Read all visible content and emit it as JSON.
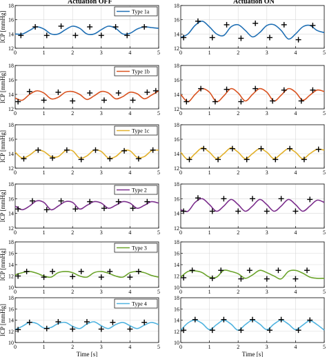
{
  "figure": {
    "col_titles": [
      "Actuation OFF",
      "Actuation ON"
    ],
    "ylabel": "ICP [mmHg]",
    "xlabel": "Time [s]",
    "x_ticks": [
      "0",
      "1",
      "2",
      "3",
      "4",
      "5"
    ]
  },
  "chart_data": [
    {
      "type": "line",
      "series": [
        {
          "name": "Type 1a",
          "color": "#1f6fb4"
        }
      ],
      "x": [
        0.0,
        0.25,
        0.5,
        0.75,
        1.0,
        1.25,
        1.5,
        1.75,
        2.0,
        2.25,
        2.5,
        2.75,
        3.0,
        3.25,
        3.5,
        3.75,
        4.0,
        4.25,
        4.5,
        4.75,
        5.0
      ],
      "y": [
        14.0,
        14.0,
        14.5,
        15.0,
        14.7,
        14.0,
        14.0,
        14.6,
        15.1,
        14.8,
        14.0,
        14.0,
        14.6,
        15.1,
        14.8,
        14.0,
        14.1,
        14.7,
        15.0,
        14.9,
        14.8
      ],
      "peaks": [
        [
          0.7,
          15.0
        ],
        [
          1.6,
          15.1
        ],
        [
          2.6,
          15.0
        ],
        [
          3.5,
          15.0
        ],
        [
          4.5,
          15.0
        ]
      ],
      "troughs": [
        [
          0.2,
          13.8
        ],
        [
          1.1,
          13.8
        ],
        [
          2.1,
          13.8
        ],
        [
          3.0,
          13.8
        ],
        [
          3.9,
          13.8
        ]
      ],
      "yticks": [
        "12",
        "14",
        "16",
        "18"
      ],
      "ylim": [
        12,
        18
      ],
      "legend": "top-right",
      "column": "Actuation OFF"
    },
    {
      "type": "line",
      "series": [
        {
          "name": "Type 1a",
          "color": "#1f6fb4"
        }
      ],
      "x": [
        0.0,
        0.25,
        0.5,
        0.75,
        1.0,
        1.25,
        1.5,
        1.75,
        2.0,
        2.25,
        2.5,
        2.75,
        3.0,
        3.25,
        3.5,
        3.75,
        4.0,
        4.25,
        4.5,
        4.75,
        5.0
      ],
      "y": [
        13.5,
        14.0,
        15.2,
        15.8,
        15.0,
        14.0,
        13.8,
        15.0,
        15.3,
        14.5,
        13.6,
        14.2,
        15.2,
        15.3,
        14.5,
        13.3,
        14.0,
        15.0,
        15.2,
        14.5,
        14.2
      ],
      "peaks": [
        [
          0.6,
          15.8
        ],
        [
          1.6,
          15.3
        ],
        [
          2.6,
          15.5
        ],
        [
          3.6,
          15.3
        ],
        [
          4.6,
          15.2
        ]
      ],
      "troughs": [
        [
          0.1,
          13.5
        ],
        [
          1.1,
          13.5
        ],
        [
          2.1,
          13.4
        ],
        [
          3.1,
          13.5
        ],
        [
          4.1,
          13.2
        ]
      ],
      "yticks": [
        "12",
        "14",
        "16",
        "18"
      ],
      "ylim": [
        12,
        18
      ],
      "legend": "none",
      "column": "Actuation ON"
    },
    {
      "type": "line",
      "series": [
        {
          "name": "Type 1b",
          "color": "#d9521f"
        }
      ],
      "x": [
        0.0,
        0.25,
        0.5,
        0.75,
        1.0,
        1.25,
        1.5,
        1.75,
        2.0,
        2.25,
        2.5,
        2.75,
        3.0,
        3.25,
        3.5,
        3.75,
        4.0,
        4.25,
        4.5,
        4.75,
        5.0
      ],
      "y": [
        13.5,
        13.2,
        14.0,
        14.5,
        14.2,
        13.4,
        13.6,
        14.3,
        14.4,
        14.0,
        13.3,
        13.8,
        14.4,
        14.2,
        13.4,
        13.7,
        14.3,
        14.1,
        13.4,
        13.9,
        14.5
      ],
      "peaks": [
        [
          0.5,
          14.4
        ],
        [
          1.5,
          14.3
        ],
        [
          2.6,
          14.2
        ],
        [
          3.6,
          14.2
        ],
        [
          4.6,
          14.3
        ],
        [
          4.9,
          14.5
        ]
      ],
      "troughs": [
        [
          0.1,
          13.0
        ],
        [
          1.0,
          13.2
        ],
        [
          2.0,
          13.1
        ],
        [
          3.1,
          13.2
        ],
        [
          4.1,
          13.2
        ]
      ],
      "yticks": [
        "12",
        "14",
        "16",
        "18"
      ],
      "ylim": [
        12,
        18
      ],
      "legend": "top-right",
      "column": "Actuation OFF"
    },
    {
      "type": "line",
      "series": [
        {
          "name": "Type 1b",
          "color": "#d9521f"
        }
      ],
      "x": [
        0.0,
        0.25,
        0.5,
        0.75,
        1.0,
        1.25,
        1.5,
        1.75,
        2.0,
        2.25,
        2.5,
        2.75,
        3.0,
        3.25,
        3.5,
        3.75,
        4.0,
        4.25,
        4.5,
        4.75,
        5.0
      ],
      "y": [
        14.0,
        13.0,
        14.0,
        14.8,
        14.3,
        13.0,
        13.8,
        14.8,
        14.2,
        13.1,
        14.0,
        14.8,
        14.3,
        13.1,
        13.9,
        14.8,
        14.3,
        13.2,
        13.9,
        14.6,
        14.4
      ],
      "peaks": [
        [
          0.7,
          14.8
        ],
        [
          1.6,
          14.7
        ],
        [
          2.6,
          14.8
        ],
        [
          3.6,
          14.6
        ],
        [
          4.6,
          14.6
        ]
      ],
      "troughs": [
        [
          0.2,
          13.0
        ],
        [
          1.2,
          13.0
        ],
        [
          2.1,
          13.0
        ],
        [
          3.2,
          13.1
        ],
        [
          4.2,
          13.1
        ]
      ],
      "yticks": [
        "12",
        "14",
        "16",
        "18"
      ],
      "ylim": [
        12,
        18
      ],
      "legend": "none",
      "column": "Actuation ON"
    },
    {
      "type": "line",
      "series": [
        {
          "name": "Type 1c",
          "color": "#e2b02a"
        }
      ],
      "x": [
        0.0,
        0.25,
        0.5,
        0.75,
        1.0,
        1.25,
        1.5,
        1.75,
        2.0,
        2.25,
        2.5,
        2.75,
        3.0,
        3.25,
        3.5,
        3.75,
        4.0,
        4.25,
        4.5,
        4.75,
        5.0
      ],
      "y": [
        14.2,
        13.4,
        13.8,
        14.5,
        14.3,
        13.6,
        13.6,
        14.4,
        14.4,
        13.4,
        13.7,
        14.5,
        14.3,
        13.4,
        13.6,
        14.4,
        14.4,
        13.5,
        13.6,
        14.4,
        14.5
      ],
      "peaks": [
        [
          0.8,
          14.5
        ],
        [
          1.8,
          14.5
        ],
        [
          2.8,
          14.5
        ],
        [
          3.8,
          14.4
        ],
        [
          4.8,
          14.5
        ]
      ],
      "troughs": [
        [
          0.3,
          13.3
        ],
        [
          1.3,
          13.4
        ],
        [
          2.3,
          13.2
        ],
        [
          3.3,
          13.3
        ],
        [
          4.3,
          13.3
        ]
      ],
      "yticks": [
        "12",
        "14",
        "16",
        "18"
      ],
      "ylim": [
        12,
        18
      ],
      "legend": "top-right",
      "column": "Actuation OFF"
    },
    {
      "type": "line",
      "series": [
        {
          "name": "Type 1c",
          "color": "#e2b02a"
        }
      ],
      "x": [
        0.0,
        0.25,
        0.5,
        0.75,
        1.0,
        1.25,
        1.5,
        1.75,
        2.0,
        2.25,
        2.5,
        2.75,
        3.0,
        3.25,
        3.5,
        3.75,
        4.0,
        4.25,
        4.5,
        4.75,
        5.0
      ],
      "y": [
        14.2,
        13.2,
        14.0,
        14.8,
        14.2,
        13.3,
        14.0,
        14.8,
        14.2,
        13.3,
        14.0,
        14.7,
        14.2,
        13.3,
        14.0,
        14.7,
        14.2,
        13.3,
        14.0,
        14.6,
        14.5
      ],
      "peaks": [
        [
          0.8,
          14.7
        ],
        [
          1.8,
          14.7
        ],
        [
          2.8,
          14.7
        ],
        [
          3.8,
          14.7
        ],
        [
          4.8,
          14.6
        ]
      ],
      "troughs": [
        [
          0.3,
          13.2
        ],
        [
          1.3,
          13.2
        ],
        [
          2.3,
          13.2
        ],
        [
          3.3,
          13.2
        ],
        [
          4.3,
          13.2
        ]
      ],
      "yticks": [
        "12",
        "14",
        "16",
        "18"
      ],
      "ylim": [
        12,
        18
      ],
      "legend": "none",
      "column": "Actuation ON"
    },
    {
      "type": "line",
      "series": [
        {
          "name": "Type 2",
          "color": "#7b2d8c"
        }
      ],
      "x": [
        0.0,
        0.25,
        0.5,
        0.75,
        1.0,
        1.25,
        1.5,
        1.75,
        2.0,
        2.25,
        2.5,
        2.75,
        3.0,
        3.25,
        3.5,
        3.75,
        4.0,
        4.25,
        4.5,
        4.75,
        5.0
      ],
      "y": [
        15.0,
        14.5,
        15.0,
        15.7,
        15.5,
        14.5,
        15.0,
        15.6,
        15.5,
        14.6,
        15.1,
        15.6,
        15.4,
        14.7,
        15.1,
        15.6,
        15.4,
        14.7,
        15.1,
        15.6,
        15.4
      ],
      "peaks": [
        [
          0.6,
          15.7
        ],
        [
          1.6,
          15.7
        ],
        [
          2.6,
          15.6
        ],
        [
          3.6,
          15.6
        ],
        [
          4.6,
          15.6
        ]
      ],
      "troughs": [
        [
          0.1,
          14.6
        ],
        [
          1.1,
          14.5
        ],
        [
          2.1,
          14.6
        ],
        [
          3.1,
          14.7
        ],
        [
          4.1,
          14.7
        ]
      ],
      "yticks": [
        "12",
        "14",
        "16",
        "18"
      ],
      "ylim": [
        12,
        18
      ],
      "legend": "top-right",
      "column": "Actuation OFF"
    },
    {
      "type": "line",
      "series": [
        {
          "name": "Type 2",
          "color": "#7b2d8c"
        }
      ],
      "x": [
        0.0,
        0.25,
        0.5,
        0.75,
        1.0,
        1.25,
        1.5,
        1.75,
        2.0,
        2.25,
        2.5,
        2.75,
        3.0,
        3.25,
        3.5,
        3.75,
        4.0,
        4.25,
        4.5,
        4.75,
        5.0
      ],
      "y": [
        14.5,
        14.3,
        15.5,
        16.0,
        15.2,
        14.3,
        15.0,
        15.9,
        15.2,
        14.3,
        15.0,
        15.9,
        15.2,
        14.3,
        15.0,
        15.9,
        15.2,
        14.3,
        15.0,
        15.8,
        15.5
      ],
      "peaks": [
        [
          0.6,
          16.1
        ],
        [
          1.5,
          16.0
        ],
        [
          2.5,
          16.0
        ],
        [
          3.5,
          16.0
        ],
        [
          4.5,
          15.9
        ]
      ],
      "troughs": [
        [
          0.1,
          14.3
        ],
        [
          1.1,
          14.3
        ],
        [
          2.0,
          14.3
        ],
        [
          3.0,
          14.3
        ],
        [
          4.0,
          14.3
        ]
      ],
      "yticks": [
        "12",
        "14",
        "16",
        "18"
      ],
      "ylim": [
        12,
        18
      ],
      "legend": "none",
      "column": "Actuation ON"
    },
    {
      "type": "line",
      "series": [
        {
          "name": "Type 3",
          "color": "#6aa32a"
        }
      ],
      "x": [
        0.0,
        0.25,
        0.5,
        0.75,
        1.0,
        1.25,
        1.5,
        1.75,
        2.0,
        2.25,
        2.5,
        2.75,
        3.0,
        3.25,
        3.5,
        3.75,
        4.0,
        4.25,
        4.5,
        4.75,
        5.0
      ],
      "y": [
        12.2,
        12.6,
        12.8,
        12.5,
        12.0,
        11.8,
        12.6,
        12.8,
        12.6,
        12.0,
        11.8,
        12.6,
        12.8,
        12.5,
        12.0,
        11.8,
        12.6,
        12.8,
        12.6,
        12.1,
        11.8
      ],
      "peaks": [
        [
          0.4,
          12.8
        ],
        [
          1.3,
          12.8
        ],
        [
          2.3,
          12.8
        ],
        [
          3.3,
          12.8
        ],
        [
          4.3,
          12.8
        ]
      ],
      "troughs": [
        [
          0.1,
          12.0
        ],
        [
          1.0,
          11.8
        ],
        [
          2.0,
          11.9
        ],
        [
          3.0,
          11.8
        ],
        [
          4.0,
          11.8
        ]
      ],
      "yticks": [
        "10",
        "12",
        "14",
        "16",
        "18"
      ],
      "ylim": [
        10,
        18
      ],
      "legend": "top-right",
      "column": "Actuation OFF"
    },
    {
      "type": "line",
      "series": [
        {
          "name": "Type 3",
          "color": "#6aa32a"
        }
      ],
      "x": [
        0.0,
        0.25,
        0.5,
        0.75,
        1.0,
        1.25,
        1.5,
        1.75,
        2.0,
        2.25,
        2.5,
        2.75,
        3.0,
        3.25,
        3.5,
        3.75,
        4.0,
        4.25,
        4.5,
        4.75,
        5.0
      ],
      "y": [
        11.8,
        12.8,
        12.9,
        12.6,
        11.8,
        11.8,
        13.0,
        12.8,
        12.4,
        11.6,
        12.2,
        13.0,
        12.6,
        12.0,
        11.5,
        12.8,
        13.0,
        12.5,
        11.8,
        11.6,
        11.6
      ],
      "peaks": [
        [
          0.4,
          13.0
        ],
        [
          1.4,
          13.0
        ],
        [
          2.4,
          13.0
        ],
        [
          3.4,
          13.0
        ],
        [
          4.4,
          13.0
        ]
      ],
      "troughs": [
        [
          0.1,
          11.7
        ],
        [
          1.1,
          11.6
        ],
        [
          2.1,
          11.5
        ],
        [
          3.0,
          11.5
        ],
        [
          4.0,
          11.5
        ]
      ],
      "yticks": [
        "10",
        "12",
        "14",
        "16",
        "18"
      ],
      "ylim": [
        10,
        18
      ],
      "legend": "none",
      "column": "Actuation ON"
    },
    {
      "type": "line",
      "series": [
        {
          "name": "Type 4",
          "color": "#4fb3e0"
        }
      ],
      "x": [
        0.0,
        0.25,
        0.5,
        0.75,
        1.0,
        1.25,
        1.5,
        1.75,
        2.0,
        2.25,
        2.5,
        2.75,
        3.0,
        3.25,
        3.5,
        3.75,
        4.0,
        4.25,
        4.5,
        4.75,
        5.0
      ],
      "y": [
        12.3,
        12.9,
        13.6,
        13.4,
        12.6,
        12.7,
        13.4,
        13.6,
        12.9,
        12.5,
        13.3,
        13.7,
        13.0,
        12.5,
        13.2,
        13.6,
        13.0,
        12.5,
        13.1,
        13.6,
        13.2
      ],
      "peaks": [
        [
          0.5,
          13.6
        ],
        [
          1.5,
          13.7
        ],
        [
          2.5,
          13.7
        ],
        [
          3.4,
          13.6
        ],
        [
          4.5,
          13.6
        ]
      ],
      "troughs": [
        [
          0.1,
          12.3
        ],
        [
          1.1,
          12.5
        ],
        [
          2.0,
          12.4
        ],
        [
          3.0,
          12.4
        ],
        [
          4.0,
          12.4
        ]
      ],
      "yticks": [
        "10",
        "12",
        "14",
        "16",
        "18"
      ],
      "ylim": [
        10,
        18
      ],
      "legend": "top-right",
      "column": "Actuation OFF"
    },
    {
      "type": "line",
      "series": [
        {
          "name": "Type 4",
          "color": "#4fb3e0"
        }
      ],
      "x": [
        0.0,
        0.25,
        0.5,
        0.75,
        1.0,
        1.25,
        1.5,
        1.75,
        2.0,
        2.25,
        2.5,
        2.75,
        3.0,
        3.25,
        3.5,
        3.75,
        4.0,
        4.25,
        4.5,
        4.75,
        5.0
      ],
      "y": [
        12.2,
        13.5,
        14.0,
        13.4,
        12.3,
        13.2,
        14.0,
        13.3,
        12.2,
        13.2,
        14.0,
        13.3,
        12.3,
        13.3,
        14.0,
        13.3,
        12.3,
        13.1,
        13.9,
        13.2,
        12.2
      ],
      "peaks": [
        [
          0.5,
          14.1
        ],
        [
          1.5,
          14.1
        ],
        [
          2.5,
          14.1
        ],
        [
          3.5,
          14.1
        ],
        [
          4.5,
          14.0
        ]
      ],
      "troughs": [
        [
          0.1,
          12.2
        ],
        [
          1.1,
          12.2
        ],
        [
          2.1,
          12.2
        ],
        [
          3.1,
          12.2
        ],
        [
          4.1,
          12.2
        ]
      ],
      "yticks": [
        "10",
        "12",
        "14",
        "16",
        "18"
      ],
      "ylim": [
        10,
        18
      ],
      "legend": "none",
      "column": "Actuation ON"
    }
  ]
}
